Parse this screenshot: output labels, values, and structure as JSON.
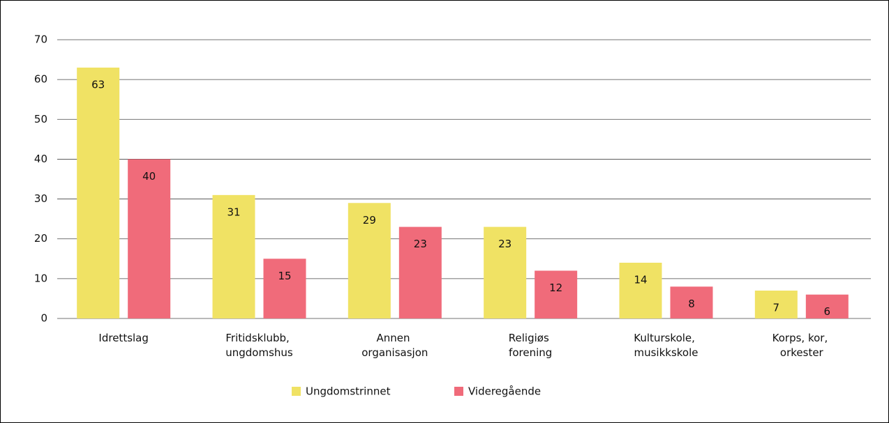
{
  "chart_data": {
    "type": "bar",
    "categories": [
      "Idrettslag",
      "Fritidsklubb, ungdomshus",
      "Annen organisasjon",
      "Religiøs forening",
      "Kulturskole, musikkskole",
      "Korps, kor, orkester"
    ],
    "series": [
      {
        "name": "Ungdomstrinnet",
        "color": "#f0e264",
        "values": [
          63,
          31,
          29,
          23,
          14,
          7
        ]
      },
      {
        "name": "Videregående",
        "color": "#f06b7a",
        "values": [
          40,
          15,
          23,
          12,
          8,
          6
        ]
      }
    ],
    "ylim": [
      0,
      70
    ],
    "yticks": [
      0,
      10,
      20,
      30,
      40,
      50,
      60,
      70
    ],
    "grid": true,
    "legend": "bottom"
  }
}
